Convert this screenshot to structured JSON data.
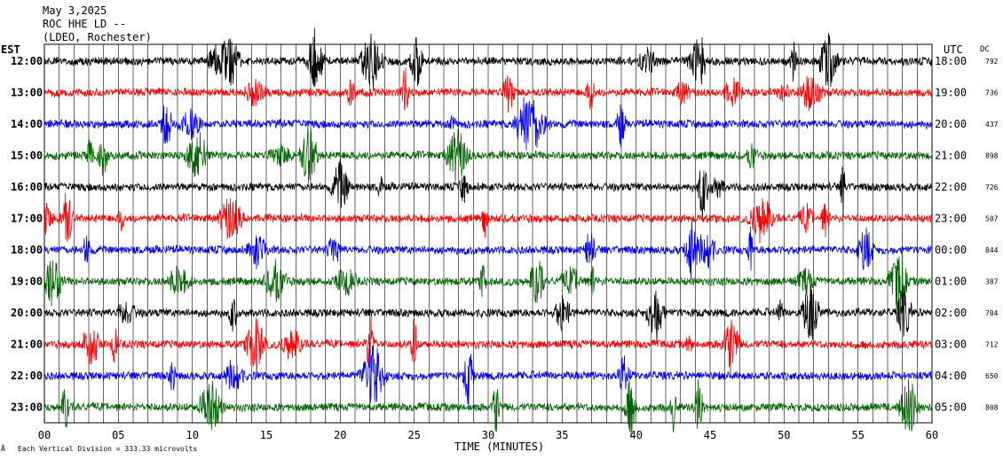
{
  "header": {
    "date": "May 3,2025",
    "station": "ROC HHE LD --",
    "network": "(LDEO, Rochester)"
  },
  "left_axis_title": "EST",
  "right_axis_title": "UTC",
  "dc_title": "DC",
  "footer": {
    "xlabel": "TIME (MINUTES)",
    "scale_note": "Each Vertical Division =  333.33 microvolts"
  },
  "chart_data": {
    "type": "line",
    "title": "May 3,2025",
    "xlabel": "TIME (MINUTES)",
    "ylabel": "EST",
    "xlim": [
      0,
      60
    ],
    "x_ticks": [
      "00",
      "05",
      "10",
      "15",
      "20",
      "25",
      "30",
      "35",
      "40",
      "45",
      "50",
      "55",
      "60"
    ],
    "grid": "vertical lines every minute",
    "trace_colors": [
      "#000000",
      "#ff0000",
      "#0000ff",
      "#006400"
    ],
    "rows": [
      {
        "est": "12:00",
        "utc": "18:00",
        "dc": "792"
      },
      {
        "est": "13:00",
        "utc": "19:00",
        "dc": "736"
      },
      {
        "est": "14:00",
        "utc": "20:00",
        "dc": "437"
      },
      {
        "est": "15:00",
        "utc": "21:00",
        "dc": "898"
      },
      {
        "est": "16:00",
        "utc": "22:00",
        "dc": "726"
      },
      {
        "est": "17:00",
        "utc": "23:00",
        "dc": "507"
      },
      {
        "est": "18:00",
        "utc": "00:00",
        "dc": "844"
      },
      {
        "est": "19:00",
        "utc": "01:00",
        "dc": "387"
      },
      {
        "est": "20:00",
        "utc": "02:00",
        "dc": "704"
      },
      {
        "est": "21:00",
        "utc": "03:00",
        "dc": "712"
      },
      {
        "est": "22:00",
        "utc": "04:00",
        "dc": "650"
      },
      {
        "est": "23:00",
        "utc": "05:00",
        "dc": "808"
      }
    ]
  }
}
